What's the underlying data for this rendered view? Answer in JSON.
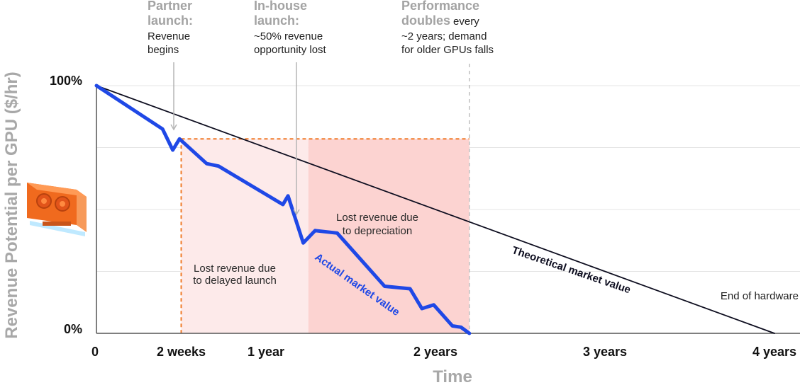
{
  "chart_data": {
    "type": "line",
    "title": "",
    "xlabel": "Time",
    "ylabel": "Revenue Potential per GPU ($/hr)",
    "xlim": [
      0,
      4
    ],
    "ylim": [
      0,
      100
    ],
    "x_ticks": [
      {
        "value": 0,
        "label": "0"
      },
      {
        "value": 0.5,
        "label": "2 weeks"
      },
      {
        "value": 1,
        "label": "1 year"
      },
      {
        "value": 2,
        "label": "2 years"
      },
      {
        "value": 3,
        "label": "3 years"
      },
      {
        "value": 4,
        "label": "4 years"
      }
    ],
    "y_ticks": [
      {
        "value": 0,
        "label": "0%"
      },
      {
        "value": 100,
        "label": "100%"
      }
    ],
    "grid": true,
    "series": [
      {
        "name": "Theoretical market value",
        "color": "#0d0d1f",
        "points": [
          [
            0,
            100
          ],
          [
            4,
            0
          ]
        ]
      },
      {
        "name": "Actual market value",
        "color": "#1f48e6",
        "points": [
          [
            0,
            100
          ],
          [
            0.39,
            82.5
          ],
          [
            0.45,
            74
          ],
          [
            0.49,
            78.5
          ],
          [
            0.65,
            68.5
          ],
          [
            0.72,
            67.5
          ],
          [
            1.1,
            52
          ],
          [
            1.13,
            55.5
          ],
          [
            1.22,
            36.5
          ],
          [
            1.29,
            41.5
          ],
          [
            1.42,
            40.5
          ],
          [
            1.7,
            19
          ],
          [
            1.85,
            18
          ],
          [
            1.92,
            10
          ],
          [
            1.99,
            11.5
          ],
          [
            2.1,
            3
          ],
          [
            2.15,
            2.5
          ],
          [
            2.2,
            0
          ]
        ]
      }
    ],
    "regions": [
      {
        "label": "Lost revenue due to delayed launch",
        "x0": 0.5,
        "x1": 1.25,
        "y0": 0,
        "y1": 78.5,
        "color": "#fdeaea"
      },
      {
        "label": "Lost revenue due to depreciation",
        "x0": 1.25,
        "x1": 2.2,
        "y0": 0,
        "y1": 78.5,
        "color": "#fcd3d1"
      }
    ],
    "reference_lines": [
      {
        "type": "vertical",
        "x": 0.5,
        "style": "dashed",
        "color": "#f07b2a"
      },
      {
        "type": "horizontal",
        "y": 78.5,
        "style": "dashed",
        "color": "#f07b2a"
      },
      {
        "type": "vertical",
        "x": 2.2,
        "style": "dashed",
        "color": "#bfbfbf"
      }
    ],
    "annotations": [
      {
        "x": 0.5,
        "head": [
          "Partner",
          "launch:"
        ],
        "body": [
          "Revenue",
          "begins"
        ]
      },
      {
        "x": 1.25,
        "head": [
          "In-house",
          "launch:"
        ],
        "body": [
          "~50% revenue",
          "opportunity lost"
        ]
      },
      {
        "x": 2.2,
        "head": [
          "Performance",
          "doubles"
        ],
        "head_suffix": "every",
        "body": [
          "~2 years; demand",
          "for older GPUs falls"
        ]
      }
    ],
    "end_label": "End of hardware",
    "gpu_icon": "gpu-card-icon"
  }
}
